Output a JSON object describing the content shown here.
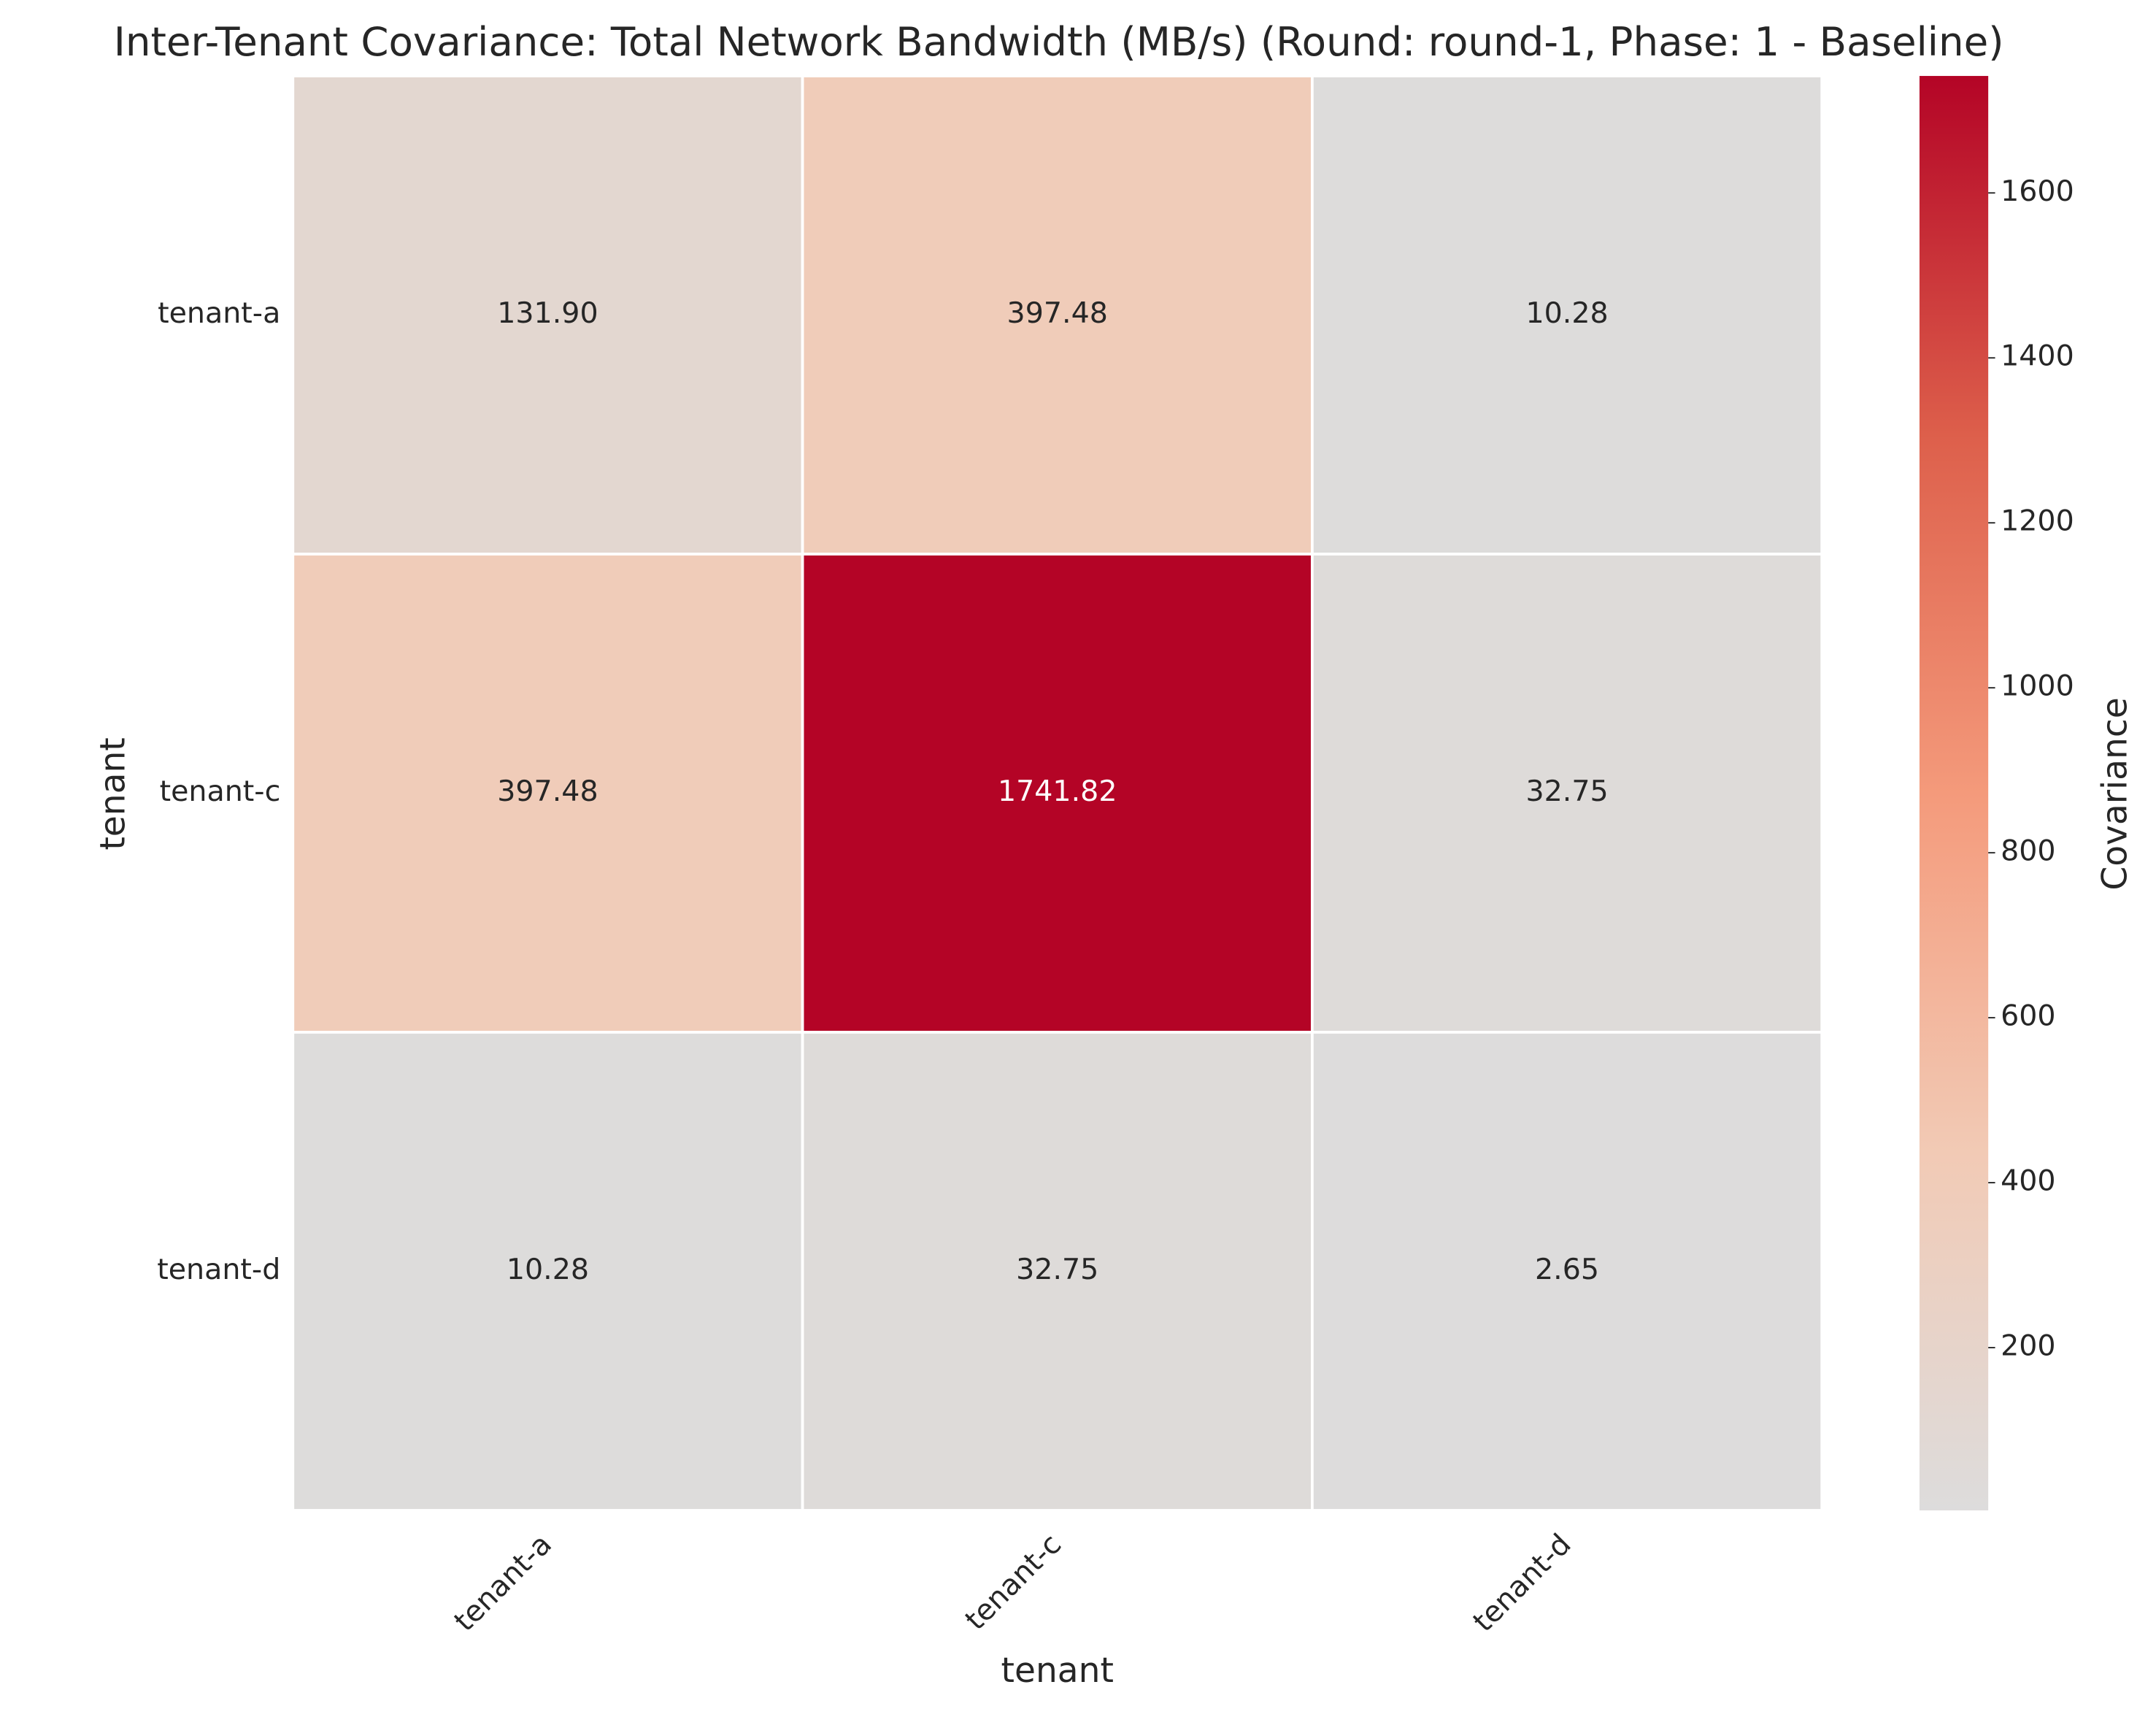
{
  "chart_data": {
    "type": "heatmap",
    "title": "Inter-Tenant Covariance: Total Network Bandwidth (MB/s) (Round: round-1, Phase: 1 - Baseline)",
    "x_label": "tenant",
    "y_label": "tenant",
    "x_categories": [
      "tenant-a",
      "tenant-c",
      "tenant-d"
    ],
    "y_categories": [
      "tenant-a",
      "tenant-c",
      "tenant-d"
    ],
    "values": [
      [
        131.9,
        397.48,
        10.28
      ],
      [
        397.48,
        1741.82,
        32.75
      ],
      [
        10.28,
        32.75,
        2.65
      ]
    ],
    "value_labels": [
      [
        "131.90",
        "397.48",
        "10.28"
      ],
      [
        "397.48",
        "1741.82",
        "32.75"
      ],
      [
        "10.28",
        "32.75",
        "2.65"
      ]
    ],
    "colormap": [
      "#dddcdc",
      "#f2cab5",
      "#f49a7b",
      "#dd5f4b",
      "#b40426"
    ],
    "colorbar_label": "Covariance",
    "colorbar_ticks": [
      200,
      400,
      600,
      800,
      1000,
      1200,
      1400,
      1600
    ]
  }
}
